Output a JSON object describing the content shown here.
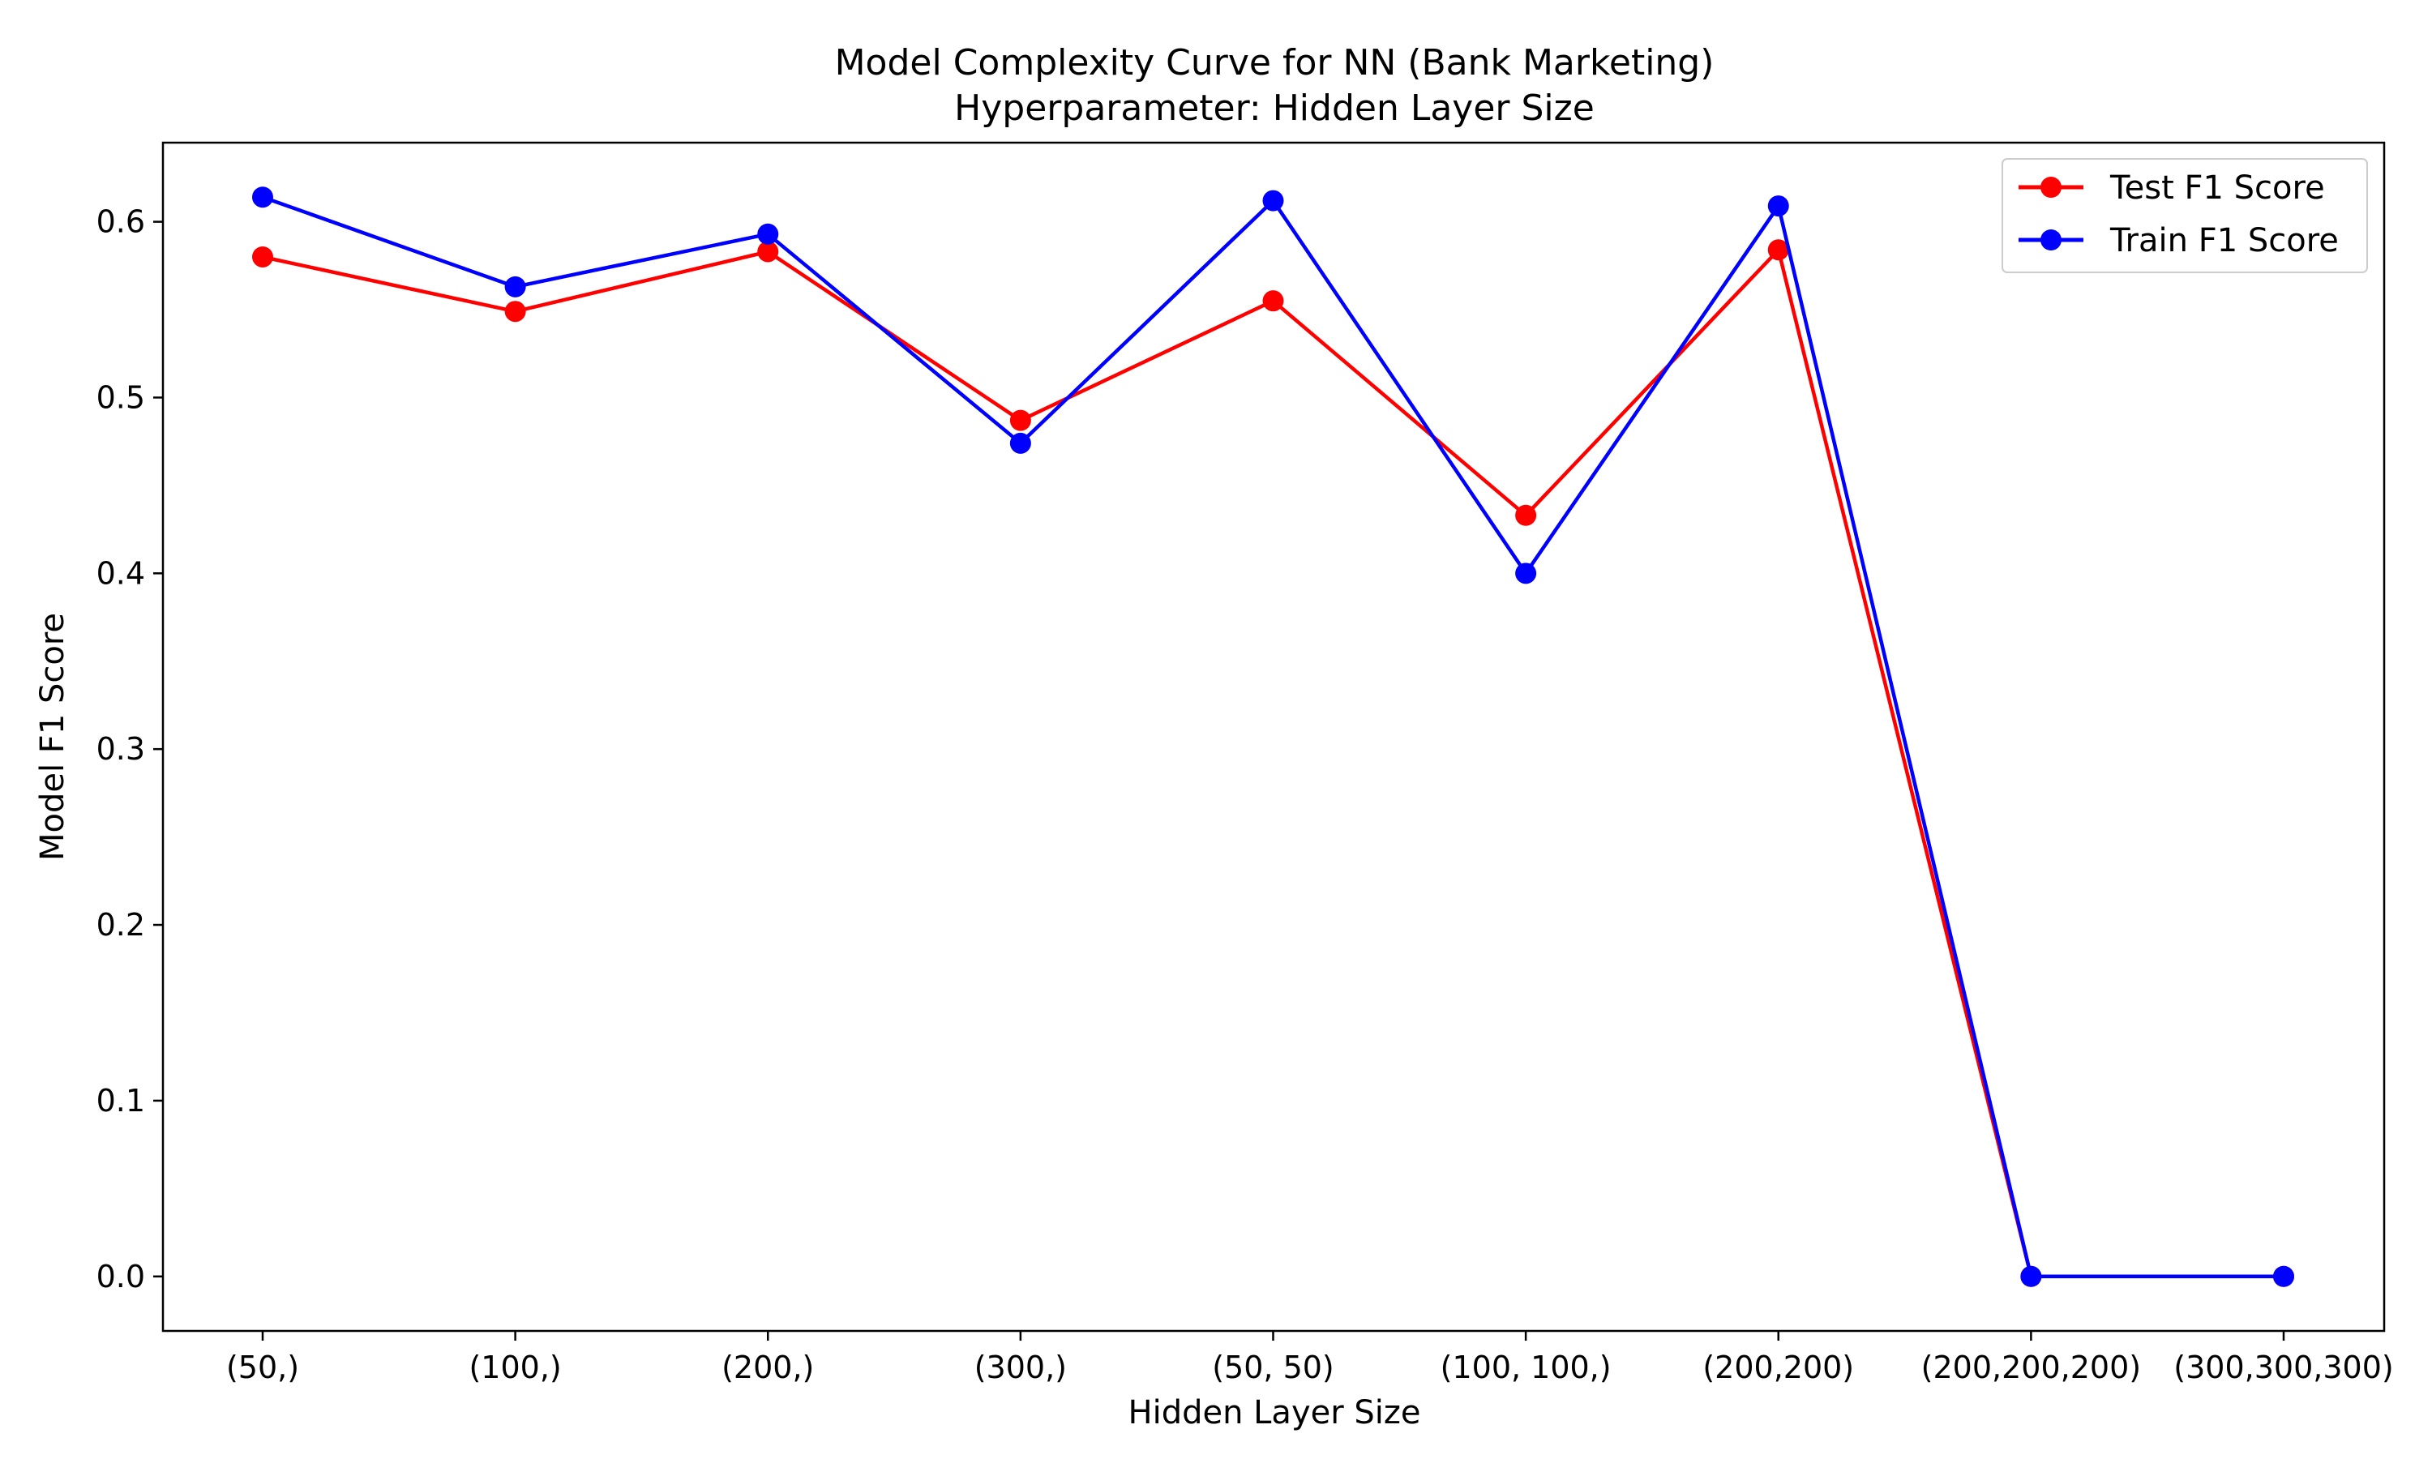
{
  "chart_data": {
    "type": "line",
    "title": "Model Complexity Curve for NN (Bank Marketing)",
    "subtitle": "Hyperparameter: Hidden Layer Size",
    "xlabel": "Hidden Layer Size",
    "ylabel": "Model F1 Score",
    "categories": [
      "(50,)",
      "(100,)",
      "(200,)",
      "(300,)",
      "(50, 50)",
      "(100, 100,)",
      "(200,200)",
      "(200,200,200)",
      "(300,300,300)"
    ],
    "ylim": [
      -0.031,
      0.645
    ],
    "yticks": [
      0.0,
      0.1,
      0.2,
      0.3,
      0.4,
      0.5,
      0.6
    ],
    "ytick_labels": [
      "0.0",
      "0.1",
      "0.2",
      "0.3",
      "0.4",
      "0.5",
      "0.6"
    ],
    "grid": false,
    "legend_position": "top-right",
    "series": [
      {
        "name": "Test F1 Score",
        "color": "#ff0000",
        "marker": "circle",
        "values": [
          0.58,
          0.549,
          0.583,
          0.487,
          0.555,
          0.433,
          0.584,
          0.0,
          0.0
        ]
      },
      {
        "name": "Train F1 Score",
        "color": "#0000ff",
        "marker": "circle",
        "values": [
          0.614,
          0.563,
          0.593,
          0.474,
          0.612,
          0.4,
          0.609,
          0.0,
          0.0
        ]
      }
    ]
  }
}
